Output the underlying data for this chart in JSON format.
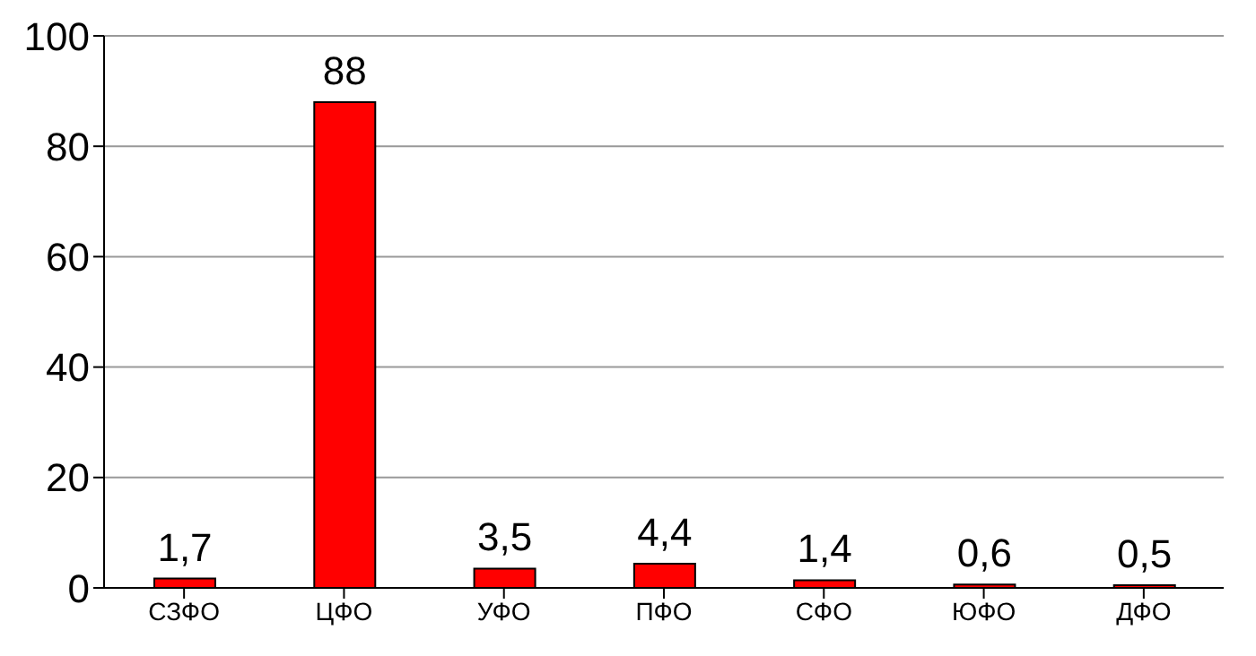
{
  "chart_data": {
    "type": "bar",
    "categories": [
      "СЗФО",
      "ЦФО",
      "УФО",
      "ПФО",
      "СФО",
      "ЮФО",
      "ДФО"
    ],
    "values": [
      1.7,
      88,
      3.5,
      4.4,
      1.4,
      0.6,
      0.5
    ],
    "value_labels": [
      "1,7",
      "88",
      "3,5",
      "4,4",
      "1,4",
      "0,6",
      "0,5"
    ],
    "color": "#ff0000",
    "ylim": [
      0,
      100
    ],
    "yticks": [
      0,
      20,
      40,
      60,
      80,
      100
    ],
    "grid": "y"
  }
}
